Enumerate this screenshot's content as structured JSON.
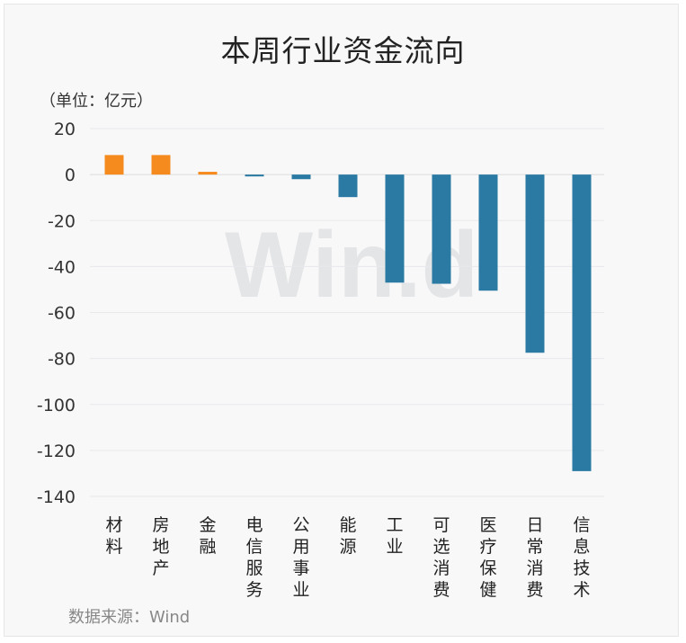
{
  "title": "本周行业资金流向",
  "unit_label": "（单位：亿元）",
  "source": "数据来源：Wind",
  "watermark": "Win.d",
  "chart_data": {
    "type": "bar",
    "title": "本周行业资金流向",
    "ylabel": "（单位：亿元）",
    "xlabel": "",
    "ylim": [
      -140,
      20
    ],
    "yticks": [
      20,
      0,
      -20,
      -40,
      -60,
      -80,
      -100,
      -120,
      -140
    ],
    "grid": true,
    "categories": [
      "材料",
      "房地产",
      "金融",
      "电信服务",
      "公用事业",
      "能源",
      "工业",
      "可选消费",
      "医疗保健",
      "日常消费",
      "信息技术"
    ],
    "values": [
      8.5,
      8.5,
      1.2,
      -0.8,
      -2.0,
      -9.8,
      -47.0,
      -47.5,
      -50.5,
      -77.5,
      -129.0
    ],
    "colors": {
      "positive": "#f58a1f",
      "negative": "#2a7aa3"
    }
  }
}
